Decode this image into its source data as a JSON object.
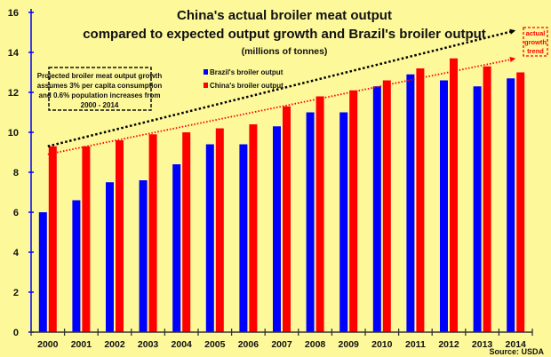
{
  "chart_data": {
    "type": "bar",
    "title": "China's actual broiler meat output",
    "subtitle": "compared to expected output growth and Brazil's broiler output",
    "units": "(millions of tonnes)",
    "xlabel": "",
    "ylabel": "",
    "ylim": [
      0,
      16
    ],
    "yticks": [
      0,
      2,
      4,
      6,
      8,
      10,
      12,
      14,
      16
    ],
    "categories": [
      "2000",
      "2001",
      "2002",
      "2003",
      "2004",
      "2005",
      "2006",
      "2007",
      "2008",
      "2009",
      "2010",
      "2011",
      "2012",
      "2013",
      "2014"
    ],
    "series": [
      {
        "name": "Brazil's broiler output",
        "color": "#0000ff",
        "values": [
          6.0,
          6.6,
          7.5,
          7.6,
          8.4,
          9.4,
          9.4,
          10.3,
          11.0,
          11.0,
          12.3,
          12.9,
          12.6,
          12.3,
          12.7
        ]
      },
      {
        "name": "China's broiler output",
        "color": "#ff0000",
        "values": [
          9.3,
          9.3,
          9.6,
          9.9,
          10.0,
          10.2,
          10.4,
          11.3,
          11.8,
          12.1,
          12.6,
          13.2,
          13.7,
          13.3,
          13.0
        ]
      }
    ],
    "trend_lines": [
      {
        "name": "projected",
        "color": "#000000",
        "start": [
          2000,
          9.3
        ],
        "end": [
          2014,
          15.1
        ]
      },
      {
        "name": "actual",
        "color": "#ff0000",
        "start": [
          2000,
          8.9
        ],
        "end": [
          2014,
          13.7
        ]
      }
    ],
    "annotation_projected": [
      "Projected broiler meat output growth",
      "assumes 3% per capita consumption",
      "and 0.6% population increases from",
      "2000 - 2014"
    ],
    "annotation_actual": [
      "actual",
      "growth",
      "trend"
    ],
    "source": "Source: USDA",
    "legend_position": "top-center",
    "grid": false
  }
}
